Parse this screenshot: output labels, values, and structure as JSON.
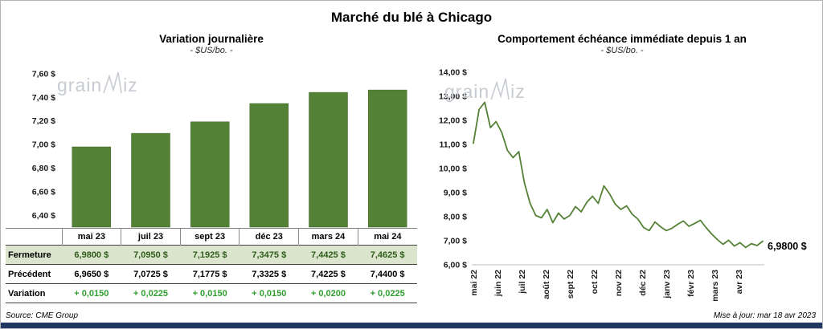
{
  "page": {
    "title": "Marché du blé à Chicago",
    "source": "Source: CME Group",
    "updated": "Mise à jour: mar 18 avr 2023"
  },
  "colors": {
    "bar_green": "#538135",
    "line_green": "#538135",
    "fermeture_row_bg": "#dbe5cd",
    "fermeture_text": "#2e5d1a",
    "variation_green": "#2f9e2f",
    "navy_bar": "#1f3864",
    "watermark_gray": "#c7ccd2"
  },
  "watermark": {
    "part1": "grain",
    "part2": "iz"
  },
  "bar_panel": {
    "title": "Variation journalière",
    "subtitle": "- $US/bo. -"
  },
  "line_panel": {
    "title": "Comportement échéance immédiate depuis 1 an",
    "subtitle": "- $US/bo. -",
    "end_label": "6,9800 $"
  },
  "table": {
    "columns": [
      "mai 23",
      "juil 23",
      "sept 23",
      "déc 23",
      "mars 24",
      "mai 24"
    ],
    "rows": [
      {
        "label": "Fermeture",
        "values": [
          "6,9800  $",
          "7,0950  $",
          "7,1925  $",
          "7,3475  $",
          "7,4425  $",
          "7,4625  $"
        ]
      },
      {
        "label": "Précédent",
        "values": [
          "6,9650  $",
          "7,0725  $",
          "7,1775  $",
          "7,3325  $",
          "7,4225  $",
          "7,4400  $"
        ]
      },
      {
        "label": "Variation",
        "values": [
          "+ 0,0150",
          "+ 0,0225",
          "+ 0,0150",
          "+ 0,0150",
          "+ 0,0200",
          "+ 0,0225"
        ]
      }
    ]
  },
  "chart_data": [
    {
      "type": "bar",
      "title": "Variation journalière",
      "subtitle": "- $US/bo. -",
      "categories": [
        "mai 23",
        "juil 23",
        "sept 23",
        "déc 23",
        "mars 24",
        "mai 24"
      ],
      "values": [
        6.98,
        7.095,
        7.1925,
        7.3475,
        7.4425,
        7.4625
      ],
      "ylabel": "$US/bo.",
      "ylim": [
        6.3,
        7.68
      ],
      "yticks": [
        "6,40 $",
        "6,60 $",
        "6,80 $",
        "7,00 $",
        "7,20 $",
        "7,40 $",
        "7,60 $"
      ],
      "ytick_values": [
        6.4,
        6.6,
        6.8,
        7.0,
        7.2,
        7.4,
        7.6
      ],
      "bar_color": "#538135",
      "grid": false,
      "legend": false
    },
    {
      "type": "line",
      "title": "Comportement échéance immédiate depuis 1 an",
      "subtitle": "- $US/bo. -",
      "x_labels": [
        "mai 22",
        "juin 22",
        "juil 22",
        "août 22",
        "sept 22",
        "oct 22",
        "nov 22",
        "déc 22",
        "janv 23",
        "févr 23",
        "mars 23",
        "avr 23"
      ],
      "values": [
        11.05,
        12.45,
        12.75,
        11.7,
        11.95,
        11.5,
        10.75,
        10.45,
        10.7,
        9.4,
        8.55,
        8.05,
        7.95,
        8.3,
        7.75,
        8.15,
        7.9,
        8.05,
        8.42,
        8.2,
        8.6,
        8.85,
        8.55,
        9.28,
        8.95,
        8.52,
        8.3,
        8.45,
        8.1,
        7.9,
        7.55,
        7.42,
        7.78,
        7.58,
        7.42,
        7.52,
        7.68,
        7.82,
        7.6,
        7.72,
        7.85,
        7.55,
        7.28,
        7.05,
        6.85,
        7.02,
        6.78,
        6.92,
        6.72,
        6.88,
        6.8,
        6.98
      ],
      "last_value": 6.98,
      "last_value_label": "6,9800 $",
      "ylim": [
        6.0,
        14.0
      ],
      "yticks": [
        "6,00 $",
        "7,00 $",
        "8,00 $",
        "9,00 $",
        "10,00 $",
        "11,00 $",
        "12,00 $",
        "13,00 $",
        "14,00 $"
      ],
      "ytick_values": [
        6,
        7,
        8,
        9,
        10,
        11,
        12,
        13,
        14
      ],
      "line_color": "#538135",
      "grid": false,
      "legend": false
    }
  ]
}
